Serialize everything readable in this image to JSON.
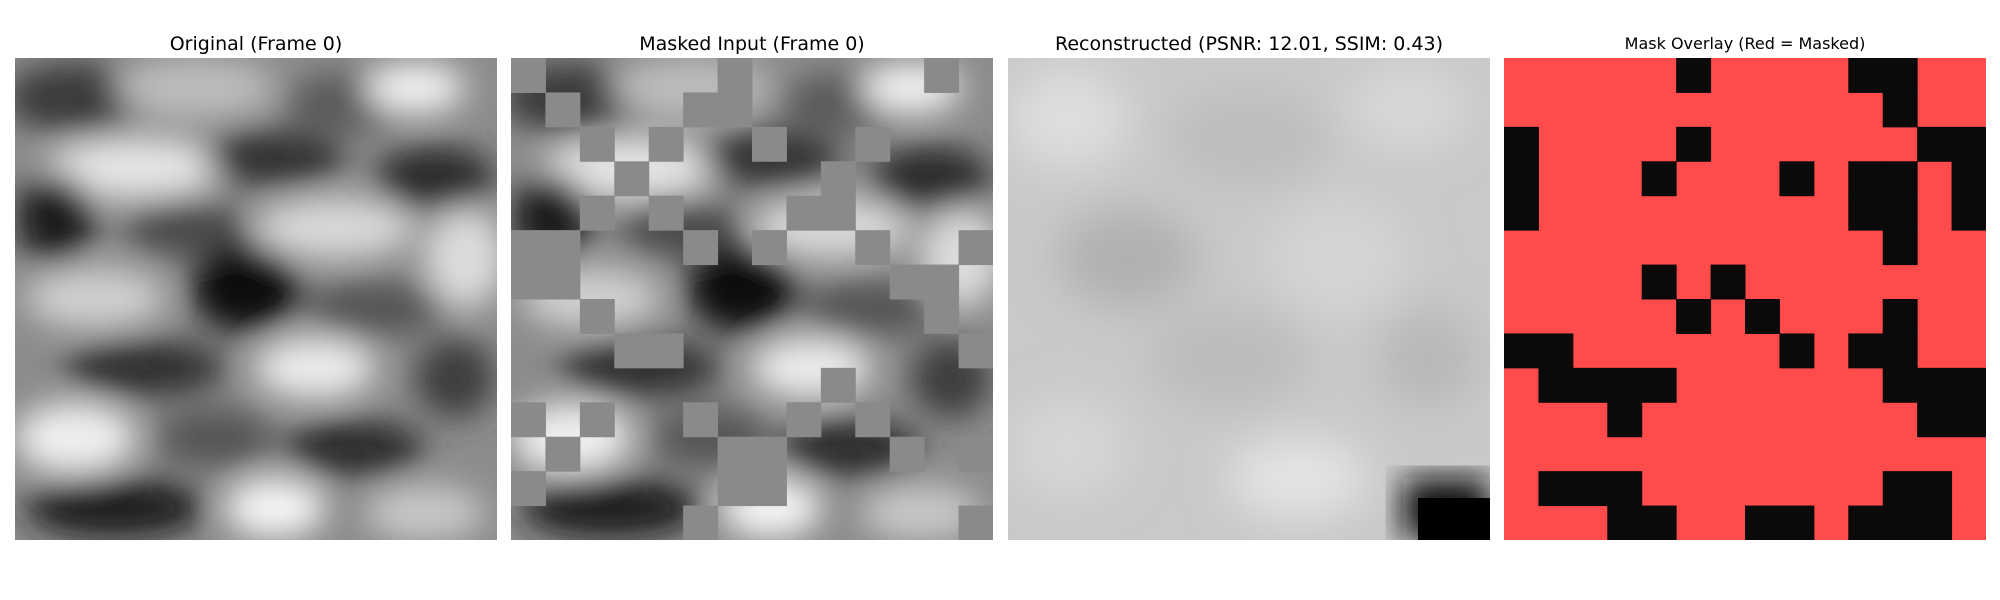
{
  "panels": [
    {
      "title": "Original (Frame 0)"
    },
    {
      "title": "Masked Input (Frame 0)"
    },
    {
      "title": "Reconstructed (PSNR: 12.01, SSIM: 0.43)"
    },
    {
      "title": "Mask Overlay (Red = Masked)"
    }
  ],
  "colors": {
    "mask_red": "#ff4b4b",
    "mask_gray": "#8a8a8a",
    "unmasked": "#0a0a0a"
  },
  "mask_grid": {
    "rows": 14,
    "cols": 14,
    "unmasked": [
      "00000500005500",
      "00000000000500",
      "10000500000011",
      "10003000303101",
      "10000000003101",
      "00000000000100",
      "00001010000000",
      "00000101000100",
      "11000000101100",
      "01111000000111",
      "00010000000011",
      "00000000000000",
      "01110000000110",
      "00011001101110"
    ]
  }
}
